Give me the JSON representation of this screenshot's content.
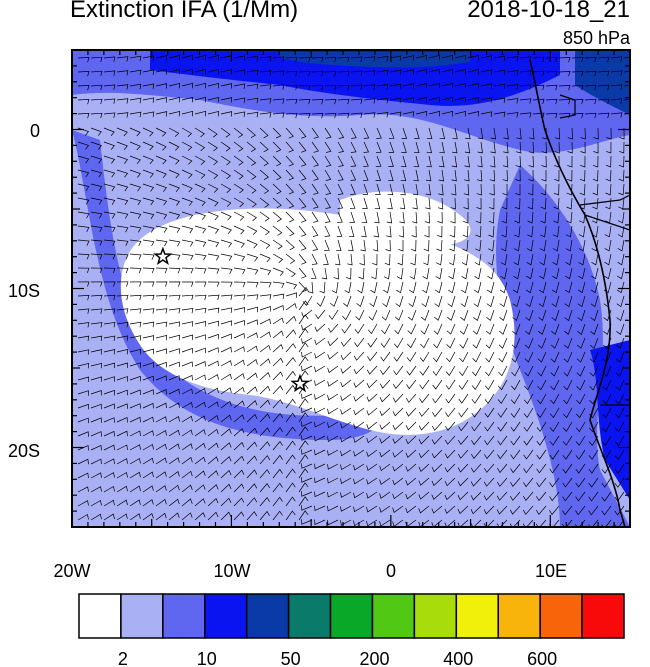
{
  "title": "Extinction IFA (1/Mm)",
  "datetime": "2018-10-18_21",
  "level": "850 hPa",
  "lon_labels": [
    "20W",
    "10W",
    "0",
    "10E"
  ],
  "lat_labels": [
    "0",
    "10S",
    "20S"
  ],
  "colorbar": {
    "colors": [
      "#ffffff",
      "#aab0f4",
      "#5f66f0",
      "#0a14f0",
      "#0a3aa8",
      "#0a7a6a",
      "#0aa828",
      "#50c814",
      "#a8dc0a",
      "#f0f00a",
      "#f8b40a",
      "#f8640a",
      "#f80a0a"
    ],
    "labels": [
      "2",
      "10",
      "50",
      "200",
      "400",
      "600"
    ]
  },
  "markers": [
    {
      "name": "star-west",
      "lon": -14.3,
      "lat": -8.0
    },
    {
      "name": "star-south",
      "lon": -5.7,
      "lat": -16.0
    }
  ]
}
